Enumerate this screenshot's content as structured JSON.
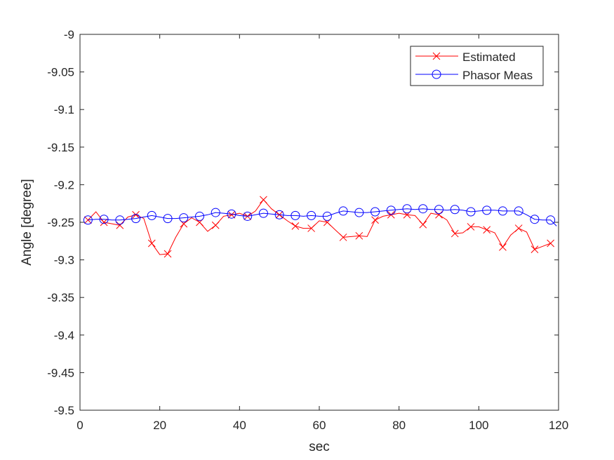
{
  "chart_data": {
    "type": "line",
    "xlabel": "sec",
    "ylabel": "Angle [degree]",
    "xlim": [
      0,
      120
    ],
    "ylim": [
      -9.5,
      -9
    ],
    "xticks": [
      0,
      20,
      40,
      60,
      80,
      100,
      120
    ],
    "yticks": [
      -9,
      -9.05,
      -9.1,
      -9.15,
      -9.2,
      -9.25,
      -9.3,
      -9.35,
      -9.4,
      -9.45,
      -9.5
    ],
    "xtick_labels": [
      "0",
      "20",
      "40",
      "60",
      "80",
      "100",
      "120"
    ],
    "ytick_labels": [
      "-9",
      "-9.05",
      "-9.1",
      "-9.15",
      "-9.2",
      "-9.25",
      "-9.3",
      "-9.35",
      "-9.4",
      "-9.45",
      "-9.5"
    ],
    "grid": false,
    "legend_position": "top-right",
    "series": [
      {
        "name": "Estimated",
        "color": "#ff0000",
        "marker": "x",
        "x": [
          2,
          4,
          6,
          8,
          10,
          12,
          14,
          16,
          18,
          20,
          22,
          24,
          26,
          28,
          30,
          32,
          34,
          36,
          38,
          40,
          42,
          44,
          46,
          48,
          50,
          52,
          54,
          56,
          58,
          60,
          62,
          64,
          66,
          68,
          70,
          72,
          74,
          76,
          78,
          80,
          82,
          84,
          86,
          88,
          90,
          92,
          94,
          96,
          98,
          100,
          102,
          104,
          106,
          108,
          110,
          112,
          114,
          116,
          118
        ],
        "y": [
          -9.247,
          -9.236,
          -9.25,
          -9.252,
          -9.254,
          -9.243,
          -9.24,
          -9.245,
          -9.278,
          -9.293,
          -9.292,
          -9.27,
          -9.252,
          -9.244,
          -9.25,
          -9.262,
          -9.254,
          -9.242,
          -9.24,
          -9.238,
          -9.242,
          -9.235,
          -9.22,
          -9.232,
          -9.24,
          -9.248,
          -9.255,
          -9.258,
          -9.258,
          -9.248,
          -9.25,
          -9.26,
          -9.27,
          -9.269,
          -9.268,
          -9.269,
          -9.247,
          -9.242,
          -9.24,
          -9.238,
          -9.24,
          -9.241,
          -9.253,
          -9.238,
          -9.24,
          -9.247,
          -9.265,
          -9.264,
          -9.256,
          -9.256,
          -9.26,
          -9.264,
          -9.283,
          -9.267,
          -9.258,
          -9.263,
          -9.286,
          -9.282,
          -9.278
        ],
        "marker_every": 2
      },
      {
        "name": "Phasor Meas",
        "color": "#0000ff",
        "marker": "o",
        "x": [
          2,
          4,
          6,
          8,
          10,
          12,
          14,
          16,
          18,
          20,
          22,
          24,
          26,
          28,
          30,
          32,
          34,
          36,
          38,
          40,
          42,
          44,
          46,
          48,
          50,
          52,
          54,
          56,
          58,
          60,
          62,
          64,
          66,
          68,
          70,
          72,
          74,
          76,
          78,
          80,
          82,
          84,
          86,
          88,
          90,
          92,
          94,
          96,
          98,
          100,
          102,
          104,
          106,
          108,
          110,
          112,
          114,
          116,
          118,
          119.5
        ],
        "y": [
          -9.247,
          -9.246,
          -9.246,
          -9.247,
          -9.247,
          -9.246,
          -9.245,
          -9.243,
          -9.241,
          -9.243,
          -9.245,
          -9.245,
          -9.244,
          -9.243,
          -9.242,
          -9.24,
          -9.237,
          -9.238,
          -9.239,
          -9.241,
          -9.242,
          -9.24,
          -9.238,
          -9.239,
          -9.24,
          -9.241,
          -9.241,
          -9.242,
          -9.241,
          -9.242,
          -9.242,
          -9.238,
          -9.235,
          -9.236,
          -9.237,
          -9.237,
          -9.236,
          -9.235,
          -9.234,
          -9.233,
          -9.232,
          -9.233,
          -9.232,
          -9.233,
          -9.233,
          -9.234,
          -9.233,
          -9.234,
          -9.236,
          -9.235,
          -9.234,
          -9.234,
          -9.235,
          -9.235,
          -9.235,
          -9.24,
          -9.246,
          -9.247,
          -9.247,
          -9.255
        ],
        "marker_every": 2
      }
    ]
  }
}
